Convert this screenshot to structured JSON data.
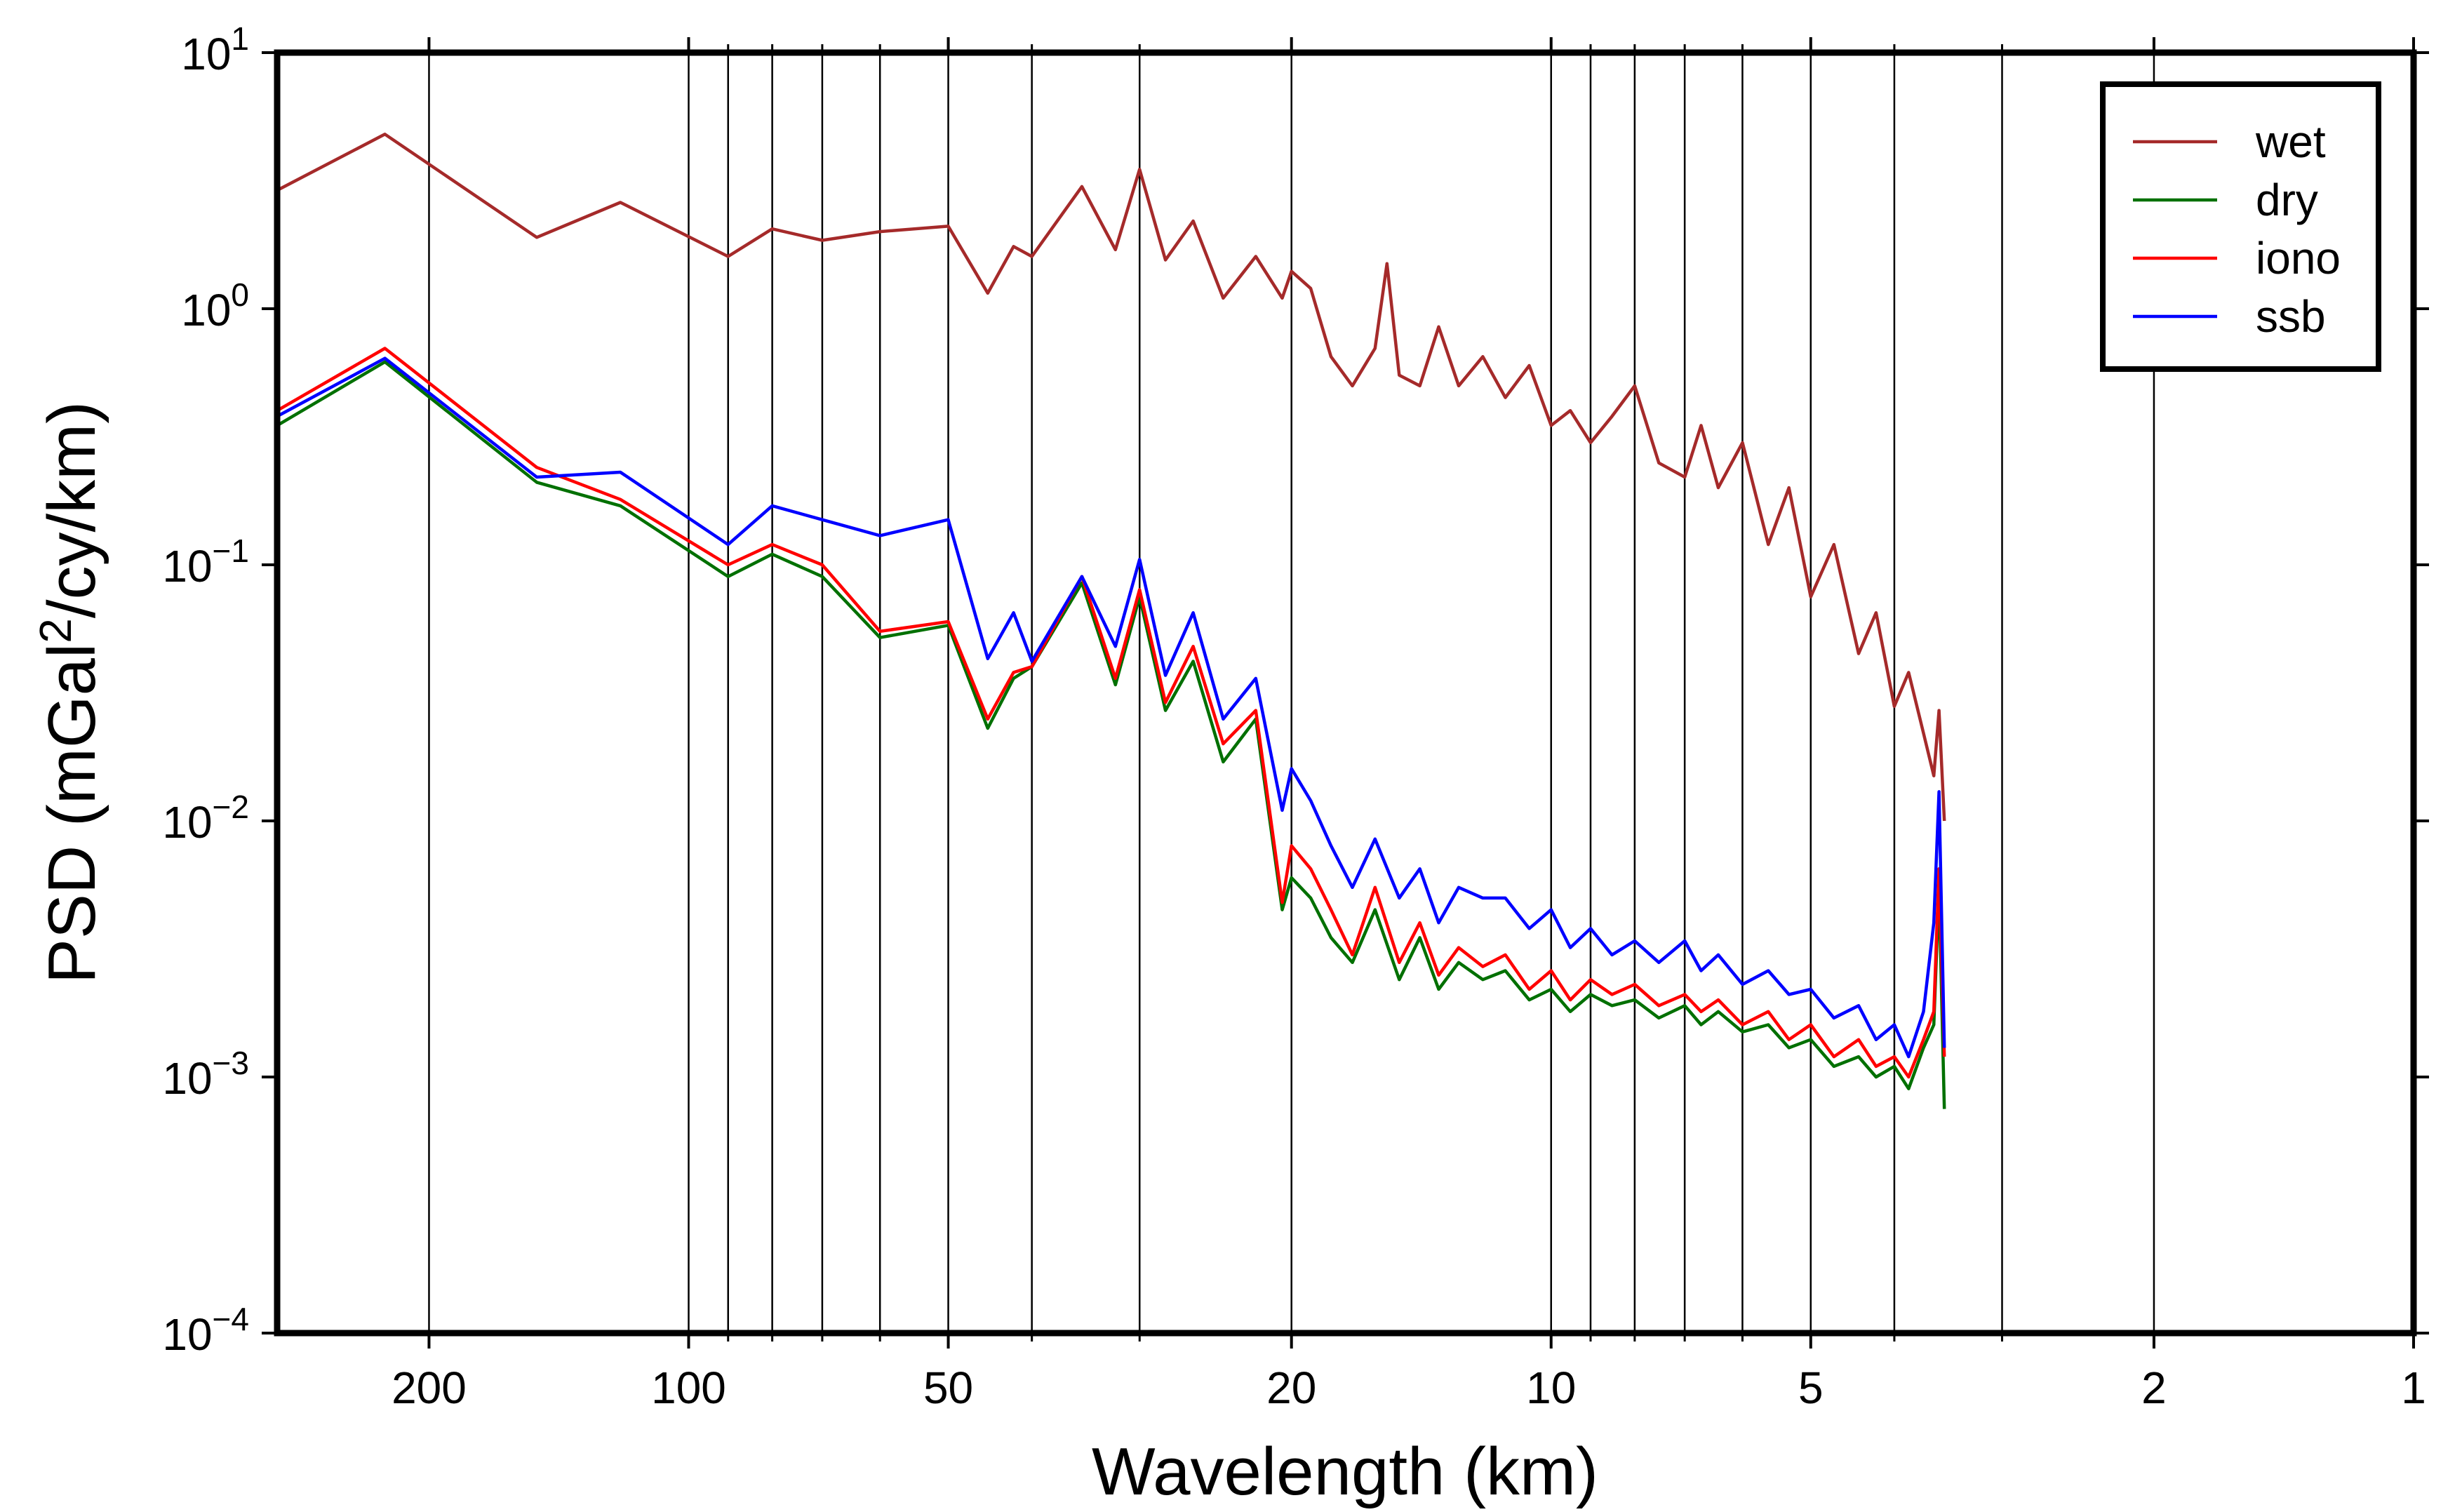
{
  "chart_data": {
    "type": "line",
    "title": "",
    "xlabel": "Wavelength (km)",
    "ylabel_parts": [
      "PSD (mGal",
      "2",
      "/cy/km)"
    ],
    "x_scale": "log",
    "y_scale": "log",
    "xlim": [
      300,
      1
    ],
    "ylim": [
      0.0001,
      10
    ],
    "grid": "vertical lines at x ticks",
    "legend_position": "top-right",
    "x_ticks": [
      {
        "value": 200,
        "label": "200"
      },
      {
        "value": 100,
        "label": "100"
      },
      {
        "value": 50,
        "label": "50"
      },
      {
        "value": 20,
        "label": "20"
      },
      {
        "value": 10,
        "label": "10"
      },
      {
        "value": 5,
        "label": "5"
      },
      {
        "value": 2,
        "label": "2"
      },
      {
        "value": 1,
        "label": "1"
      }
    ],
    "x_minor_grid": [
      90,
      80,
      70,
      60,
      40,
      30,
      9,
      8,
      7,
      6,
      4,
      3
    ],
    "y_ticks": [
      {
        "value": 10,
        "base": "10",
        "exp": "1"
      },
      {
        "value": 1,
        "base": "10",
        "exp": "0"
      },
      {
        "value": 0.1,
        "base": "10",
        "exp": "−1"
      },
      {
        "value": 0.01,
        "base": "10",
        "exp": "−2"
      },
      {
        "value": 0.001,
        "base": "10",
        "exp": "−3"
      },
      {
        "value": 0.0001,
        "base": "10",
        "exp": "−4"
      }
    ],
    "series": [
      {
        "name": "wet",
        "color": "#a52a2a",
        "x": [
          300,
          225,
          150,
          120,
          90,
          80,
          70,
          60,
          50,
          45,
          42,
          40,
          35,
          32,
          30,
          28,
          26,
          24,
          22,
          20.5,
          20,
          19,
          18,
          17,
          16,
          15.5,
          15,
          14.2,
          13.5,
          12.8,
          12,
          11.3,
          10.6,
          10,
          9.5,
          9,
          8.5,
          8,
          7.5,
          7,
          6.7,
          6.4,
          6,
          5.6,
          5.3,
          5,
          4.7,
          4.4,
          4.2,
          4,
          3.85,
          3.7,
          3.6,
          3.55,
          3.5
        ],
        "values": [
          2.9,
          4.8,
          1.9,
          2.6,
          1.6,
          2.05,
          1.85,
          2.0,
          2.1,
          1.15,
          1.75,
          1.6,
          3.0,
          1.7,
          3.5,
          1.55,
          2.2,
          1.1,
          1.6,
          1.1,
          1.4,
          1.2,
          0.65,
          0.5,
          0.7,
          1.5,
          0.55,
          0.5,
          0.85,
          0.5,
          0.65,
          0.45,
          0.6,
          0.35,
          0.4,
          0.3,
          0.38,
          0.5,
          0.25,
          0.22,
          0.35,
          0.2,
          0.3,
          0.12,
          0.2,
          0.075,
          0.12,
          0.045,
          0.065,
          0.028,
          0.038,
          0.022,
          0.015,
          0.027,
          0.01
        ]
      },
      {
        "name": "dry",
        "color": "#007000",
        "x": [
          300,
          225,
          150,
          120,
          90,
          80,
          70,
          60,
          50,
          45,
          42,
          40,
          35,
          32,
          30,
          28,
          26,
          24,
          22,
          20.5,
          20,
          19,
          18,
          17,
          16,
          15,
          14.2,
          13.5,
          12.8,
          12,
          11.3,
          10.6,
          10,
          9.5,
          9,
          8.5,
          8,
          7.5,
          7,
          6.7,
          6.4,
          6,
          5.6,
          5.3,
          5,
          4.7,
          4.4,
          4.2,
          4,
          3.85,
          3.7,
          3.6,
          3.55,
          3.5
        ],
        "values": [
          0.35,
          0.62,
          0.21,
          0.17,
          0.09,
          0.11,
          0.09,
          0.052,
          0.058,
          0.023,
          0.036,
          0.04,
          0.085,
          0.034,
          0.075,
          0.027,
          0.042,
          0.017,
          0.025,
          0.0045,
          0.006,
          0.005,
          0.0035,
          0.0028,
          0.0045,
          0.0024,
          0.0035,
          0.0022,
          0.0028,
          0.0024,
          0.0026,
          0.002,
          0.0022,
          0.0018,
          0.0021,
          0.0019,
          0.002,
          0.0017,
          0.0019,
          0.0016,
          0.0018,
          0.0015,
          0.0016,
          0.0013,
          0.0014,
          0.0011,
          0.0012,
          0.001,
          0.0011,
          0.0009,
          0.0013,
          0.0016,
          0.0055,
          0.00075
        ]
      },
      {
        "name": "iono",
        "color": "#ff0000",
        "x": [
          300,
          225,
          150,
          120,
          90,
          80,
          70,
          60,
          50,
          45,
          42,
          40,
          35,
          32,
          30,
          28,
          26,
          24,
          22,
          20.5,
          20,
          19,
          18,
          17,
          16,
          15,
          14.2,
          13.5,
          12.8,
          12,
          11.3,
          10.6,
          10,
          9.5,
          9,
          8.5,
          8,
          7.5,
          7,
          6.7,
          6.4,
          6,
          5.6,
          5.3,
          5,
          4.7,
          4.4,
          4.2,
          4,
          3.85,
          3.7,
          3.6,
          3.55,
          3.5
        ],
        "values": [
          0.4,
          0.7,
          0.24,
          0.18,
          0.1,
          0.12,
          0.1,
          0.055,
          0.06,
          0.025,
          0.038,
          0.04,
          0.09,
          0.036,
          0.08,
          0.029,
          0.048,
          0.02,
          0.027,
          0.0048,
          0.008,
          0.0065,
          0.0045,
          0.003,
          0.0055,
          0.0028,
          0.004,
          0.0025,
          0.0032,
          0.0027,
          0.003,
          0.0022,
          0.0026,
          0.002,
          0.0024,
          0.0021,
          0.0023,
          0.0019,
          0.0021,
          0.0018,
          0.002,
          0.0016,
          0.0018,
          0.0014,
          0.0016,
          0.0012,
          0.0014,
          0.0011,
          0.0012,
          0.001,
          0.0014,
          0.0018,
          0.0065,
          0.0012
        ]
      },
      {
        "name": "ssb",
        "color": "#0000ff",
        "x": [
          300,
          225,
          150,
          120,
          90,
          80,
          70,
          60,
          50,
          45,
          42,
          40,
          35,
          32,
          30,
          28,
          26,
          24,
          22,
          20.5,
          20,
          19,
          18,
          17,
          16,
          15,
          14.2,
          13.5,
          12.8,
          12,
          11.3,
          10.6,
          10,
          9.5,
          9,
          8.5,
          8,
          7.5,
          7,
          6.7,
          6.4,
          6,
          5.6,
          5.3,
          5,
          4.7,
          4.4,
          4.2,
          4,
          3.85,
          3.7,
          3.6,
          3.55,
          3.5
        ],
        "values": [
          0.38,
          0.64,
          0.22,
          0.23,
          0.12,
          0.17,
          0.15,
          0.13,
          0.15,
          0.043,
          0.065,
          0.042,
          0.09,
          0.048,
          0.105,
          0.037,
          0.065,
          0.025,
          0.036,
          0.011,
          0.016,
          0.012,
          0.008,
          0.0055,
          0.0085,
          0.005,
          0.0065,
          0.004,
          0.0055,
          0.005,
          0.005,
          0.0038,
          0.0045,
          0.0032,
          0.0038,
          0.003,
          0.0034,
          0.0028,
          0.0034,
          0.0026,
          0.003,
          0.0023,
          0.0026,
          0.0021,
          0.0022,
          0.0017,
          0.0019,
          0.0014,
          0.0016,
          0.0012,
          0.0018,
          0.004,
          0.013,
          0.0013
        ]
      }
    ]
  }
}
